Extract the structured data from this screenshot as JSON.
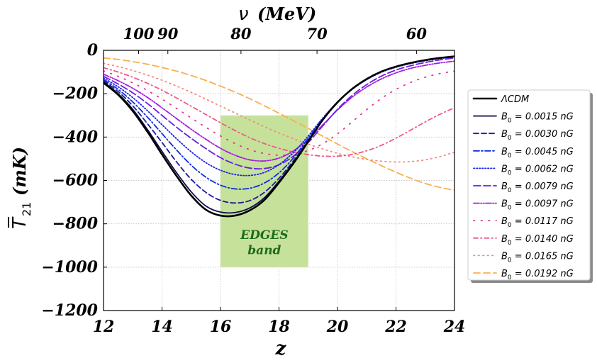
{
  "chart_data": {
    "type": "line",
    "x_axis": {
      "label": "z",
      "lim": [
        12,
        24
      ],
      "ticks": [
        12,
        14,
        16,
        18,
        20,
        22,
        24
      ],
      "tick_labels": [
        "12",
        "14",
        "16",
        "18",
        "20",
        "22",
        "24"
      ]
    },
    "y_axis": {
      "label": "T̄21 (mK)",
      "label_main": "T",
      "label_sub": "21",
      "label_unit": "(mK)",
      "lim": [
        -1200,
        0
      ],
      "ticks": [
        0,
        -200,
        -400,
        -600,
        -800,
        -1000,
        -1200
      ],
      "tick_labels": [
        "0",
        "−200",
        "−400",
        "−600",
        "−800",
        "−1000",
        "−1200"
      ]
    },
    "top_axis": {
      "label": "ν (MeV)",
      "label_symbol": "ν",
      "label_unit": "(MeV)",
      "tick_labels": [
        "100",
        "90",
        "80",
        "70",
        "60"
      ],
      "tick_z": [
        13.2,
        14.2,
        16.7,
        19.3,
        22.7
      ]
    },
    "grid": true,
    "band": {
      "label_line1": "EDGES",
      "label_line2": "band",
      "x_range": [
        16,
        19
      ],
      "y_range": [
        -1000,
        -300
      ],
      "color": "#c6e29a",
      "text_color": "#1d6b1d"
    },
    "legend": {
      "position": "right",
      "entries": [
        {
          "label_prefix": "",
          "label_sub": "",
          "label_value": "ΛCDM",
          "color": "#000000",
          "dash": "",
          "width": 2.6
        },
        {
          "label_prefix": "B",
          "label_sub": "0",
          "label_value": " = 0.0015 nG",
          "color": "#0d0d4a",
          "dash": "",
          "width": 1.8
        },
        {
          "label_prefix": "B",
          "label_sub": "0",
          "label_value": " = 0.0030 nG",
          "color": "#1b1b9a",
          "dash": "7,4",
          "width": 1.8
        },
        {
          "label_prefix": "B",
          "label_sub": "0",
          "label_value": " = 0.0045 nG",
          "color": "#0f2fd9",
          "dash": "8,3,2,3",
          "width": 1.8
        },
        {
          "label_prefix": "B",
          "label_sub": "0",
          "label_value": " = 0.0062 nG",
          "color": "#1e22e8",
          "dash": "1.5,2.5",
          "width": 1.8
        },
        {
          "label_prefix": "B",
          "label_sub": "0",
          "label_value": " = 0.0079 nG",
          "color": "#6a1ee0",
          "dash": "10,4",
          "width": 1.8
        },
        {
          "label_prefix": "B",
          "label_sub": "0",
          "label_value": " = 0.0097 nG",
          "color": "#a21ce0",
          "dash": "8,2,1.5,2,1.5,2",
          "width": 1.8
        },
        {
          "label_prefix": "B",
          "label_sub": "0",
          "label_value": " = 0.0117 nG",
          "color": "#e0369e",
          "dash": "1.5,9",
          "width": 1.8
        },
        {
          "label_prefix": "B",
          "label_sub": "0",
          "label_value": " = 0.0140 nG",
          "color": "#ee5a8a",
          "dash": "6,4,1.5,4",
          "width": 1.8
        },
        {
          "label_prefix": "B",
          "label_sub": "0",
          "label_value": " = 0.0165 nG",
          "color": "#f48a7e",
          "dash": "1.5,5",
          "width": 1.8
        },
        {
          "label_prefix": "B",
          "label_sub": "0",
          "label_value": " = 0.0192 nG",
          "color": "#f8b050",
          "dash": "9,5",
          "width": 1.8
        }
      ]
    },
    "series": [
      {
        "name": "ΛCDM",
        "x": [
          12,
          12.5,
          13,
          13.5,
          14,
          14.5,
          15,
          15.5,
          16,
          16.5,
          17,
          17.5,
          18,
          18.5,
          19,
          19.5,
          20,
          20.5,
          21,
          21.5,
          22,
          22.5,
          23,
          23.5,
          24
        ],
        "y": [
          -150,
          -205,
          -280,
          -375,
          -480,
          -580,
          -670,
          -735,
          -762,
          -762,
          -738,
          -690,
          -610,
          -520,
          -420,
          -320,
          -240,
          -178,
          -132,
          -98,
          -75,
          -58,
          -45,
          -35,
          -28
        ]
      },
      {
        "name": "B0 = 0.0015 nG",
        "x": [
          12,
          12.5,
          13,
          13.5,
          14,
          14.5,
          15,
          15.5,
          16,
          16.5,
          17,
          17.5,
          18,
          18.5,
          19,
          19.5,
          20,
          20.5,
          21,
          21.5,
          22,
          22.5,
          23,
          23.5,
          24
        ],
        "y": [
          -145,
          -200,
          -272,
          -365,
          -466,
          -565,
          -653,
          -718,
          -746,
          -748,
          -727,
          -680,
          -603,
          -516,
          -418,
          -320,
          -240,
          -178,
          -132,
          -98,
          -75,
          -58,
          -45,
          -35,
          -28
        ]
      },
      {
        "name": "B0 = 0.0030 nG",
        "x": [
          12,
          12.5,
          13,
          13.5,
          14,
          14.5,
          15,
          15.5,
          16,
          16.5,
          17,
          17.5,
          18,
          18.5,
          19,
          19.5,
          20,
          20.5,
          21,
          21.5,
          22,
          22.5,
          23,
          23.5,
          24
        ],
        "y": [
          -140,
          -190,
          -256,
          -338,
          -425,
          -515,
          -595,
          -655,
          -692,
          -704,
          -693,
          -655,
          -590,
          -508,
          -414,
          -318,
          -238,
          -178,
          -132,
          -98,
          -75,
          -58,
          -45,
          -35,
          -28
        ]
      },
      {
        "name": "B0 = 0.0045 nG",
        "x": [
          12,
          12.5,
          13,
          13.5,
          14,
          14.5,
          15,
          15.5,
          16,
          16.5,
          17,
          17.5,
          18,
          18.5,
          19,
          19.5,
          20,
          20.5,
          21,
          21.5,
          22,
          22.5,
          23,
          23.5,
          24
        ],
        "y": [
          -135,
          -180,
          -238,
          -308,
          -384,
          -460,
          -530,
          -585,
          -622,
          -639,
          -636,
          -612,
          -565,
          -495,
          -405,
          -315,
          -238,
          -178,
          -133,
          -99,
          -76,
          -59,
          -46,
          -36,
          -29
        ]
      },
      {
        "name": "B0 = 0.0062 nG",
        "x": [
          12,
          12.5,
          13,
          13.5,
          14,
          14.5,
          15,
          15.5,
          16,
          16.5,
          17,
          17.5,
          18,
          18.5,
          19,
          19.5,
          20,
          20.5,
          21,
          21.5,
          22,
          22.5,
          23,
          23.5,
          24
        ],
        "y": [
          -128,
          -168,
          -218,
          -278,
          -343,
          -408,
          -468,
          -518,
          -553,
          -573,
          -577,
          -563,
          -527,
          -470,
          -395,
          -312,
          -238,
          -180,
          -135,
          -101,
          -78,
          -61,
          -48,
          -38,
          -30
        ]
      },
      {
        "name": "B0 = 0.0079 nG",
        "x": [
          12,
          12.5,
          13,
          13.5,
          14,
          14.5,
          15,
          15.5,
          16,
          16.5,
          17,
          17.5,
          18,
          18.5,
          19,
          19.5,
          20,
          20.5,
          21,
          21.5,
          22,
          22.5,
          23,
          23.5,
          24
        ],
        "y": [
          -120,
          -155,
          -196,
          -245,
          -300,
          -355,
          -406,
          -453,
          -495,
          -525,
          -543,
          -545,
          -528,
          -487,
          -425,
          -348,
          -272,
          -208,
          -158,
          -119,
          -91,
          -71,
          -56,
          -44,
          -35
        ]
      },
      {
        "name": "B0 = 0.0097 nG",
        "x": [
          12,
          12.5,
          13,
          13.5,
          14,
          14.5,
          15,
          15.5,
          16,
          16.5,
          17,
          17.5,
          18,
          18.5,
          19,
          19.5,
          20,
          20.5,
          21,
          21.5,
          22,
          22.5,
          23,
          23.5,
          24
        ],
        "y": [
          -110,
          -140,
          -175,
          -217,
          -265,
          -315,
          -364,
          -410,
          -452,
          -484,
          -505,
          -510,
          -497,
          -463,
          -410,
          -343,
          -275,
          -216,
          -169,
          -132,
          -104,
          -83,
          -69,
          -58,
          -50
        ]
      },
      {
        "name": "B0 = 0.0117 nG",
        "x": [
          12,
          12.5,
          13,
          13.5,
          14,
          14.5,
          15,
          15.5,
          16,
          16.5,
          17,
          17.5,
          18,
          18.5,
          19,
          19.5,
          20,
          20.5,
          21,
          21.5,
          22,
          22.5,
          23,
          23.5,
          24
        ],
        "y": [
          -95,
          -120,
          -150,
          -185,
          -225,
          -268,
          -312,
          -355,
          -395,
          -430,
          -458,
          -476,
          -484,
          -480,
          -462,
          -430,
          -385,
          -330,
          -273,
          -222,
          -180,
          -148,
          -124,
          -107,
          -96
        ]
      },
      {
        "name": "B0 = 0.0140 nG",
        "x": [
          12,
          12.5,
          13,
          13.5,
          14,
          14.5,
          15,
          15.5,
          16,
          16.5,
          17,
          17.5,
          18,
          18.5,
          19,
          19.5,
          20,
          20.5,
          21,
          21.5,
          22,
          22.5,
          23,
          23.5,
          24
        ],
        "y": [
          -80,
          -100,
          -124,
          -152,
          -184,
          -220,
          -258,
          -296,
          -334,
          -370,
          -403,
          -430,
          -452,
          -469,
          -481,
          -488,
          -488,
          -480,
          -463,
          -438,
          -405,
          -368,
          -330,
          -295,
          -265
        ]
      },
      {
        "name": "B0 = 0.0165 nG",
        "x": [
          12,
          12.5,
          13,
          13.5,
          14,
          14.5,
          15,
          15.5,
          16,
          16.5,
          17,
          17.5,
          18,
          18.5,
          19,
          19.5,
          20,
          20.5,
          21,
          21.5,
          22,
          22.5,
          23,
          23.5,
          24
        ],
        "y": [
          -60,
          -75,
          -93,
          -114,
          -138,
          -165,
          -194,
          -225,
          -257,
          -289,
          -321,
          -352,
          -381,
          -408,
          -433,
          -455,
          -475,
          -491,
          -503,
          -511,
          -515,
          -513,
          -505,
          -490,
          -470
        ]
      },
      {
        "name": "B0 = 0.0192 nG",
        "x": [
          12,
          12.5,
          13,
          13.5,
          14,
          14.5,
          15,
          15.5,
          16,
          16.5,
          17,
          17.5,
          18,
          18.5,
          19,
          19.5,
          20,
          20.5,
          21,
          21.5,
          22,
          22.5,
          23,
          23.5,
          24
        ],
        "y": [
          -35,
          -42,
          -52,
          -64,
          -79,
          -96,
          -116,
          -139,
          -165,
          -193,
          -223,
          -256,
          -290,
          -325,
          -360,
          -396,
          -432,
          -467,
          -500,
          -532,
          -562,
          -590,
          -614,
          -632,
          -645
        ]
      }
    ]
  }
}
